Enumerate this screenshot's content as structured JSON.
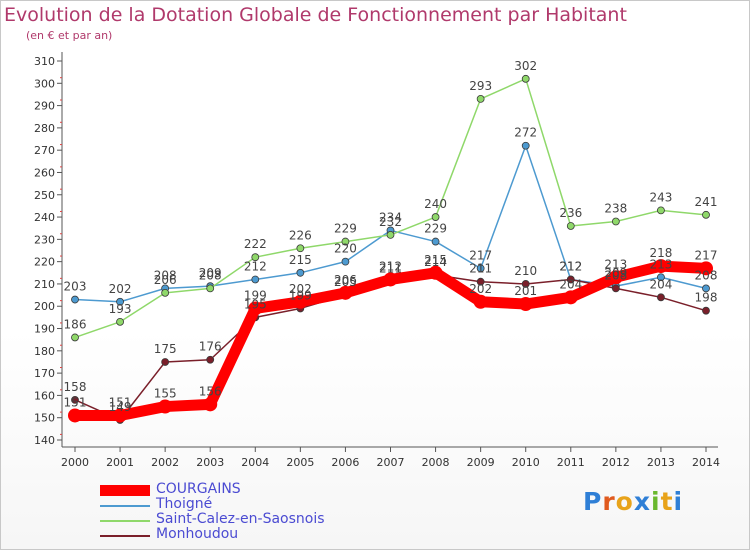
{
  "title": "Evolution de la Dotation Globale de Fonctionnement par Habitant",
  "subtitle": "(en € et par an)",
  "logo": "Proxiti",
  "chart_data": {
    "type": "line",
    "x": [
      "2000",
      "2001",
      "2002",
      "2003",
      "2004",
      "2005",
      "2006",
      "2007",
      "2008",
      "2009",
      "2010",
      "2011",
      "2012",
      "2013",
      "2014"
    ],
    "ylim": [
      140,
      310
    ],
    "yticks": [
      140,
      150,
      160,
      170,
      180,
      190,
      200,
      210,
      220,
      230,
      240,
      250,
      260,
      270,
      280,
      290,
      300,
      310
    ],
    "grid": false,
    "legend": "bottom-left",
    "series": [
      {
        "name": "COURGAINS",
        "color": "#ff0000",
        "values": [
          151,
          151,
          155,
          156,
          199,
          202,
          206,
          212,
          215,
          202,
          201,
          204,
          213,
          218,
          217
        ]
      },
      {
        "name": "Thoigné",
        "color": "#4d9ad0",
        "values": [
          203,
          202,
          208,
          209,
          212,
          215,
          220,
          234,
          229,
          217,
          272,
          212,
          209,
          213,
          208
        ]
      },
      {
        "name": "Saint-Calez-en-Saosnois",
        "color": "#8fd86a",
        "values": [
          186,
          193,
          206,
          208,
          222,
          226,
          229,
          232,
          240,
          293,
          302,
          236,
          238,
          243,
          241
        ]
      },
      {
        "name": "Monhoudou",
        "color": "#7a1f2a",
        "values": [
          158,
          149,
          175,
          176,
          195,
          199,
          205,
          211,
          214,
          211,
          210,
          212,
          208,
          204,
          198
        ]
      }
    ]
  }
}
